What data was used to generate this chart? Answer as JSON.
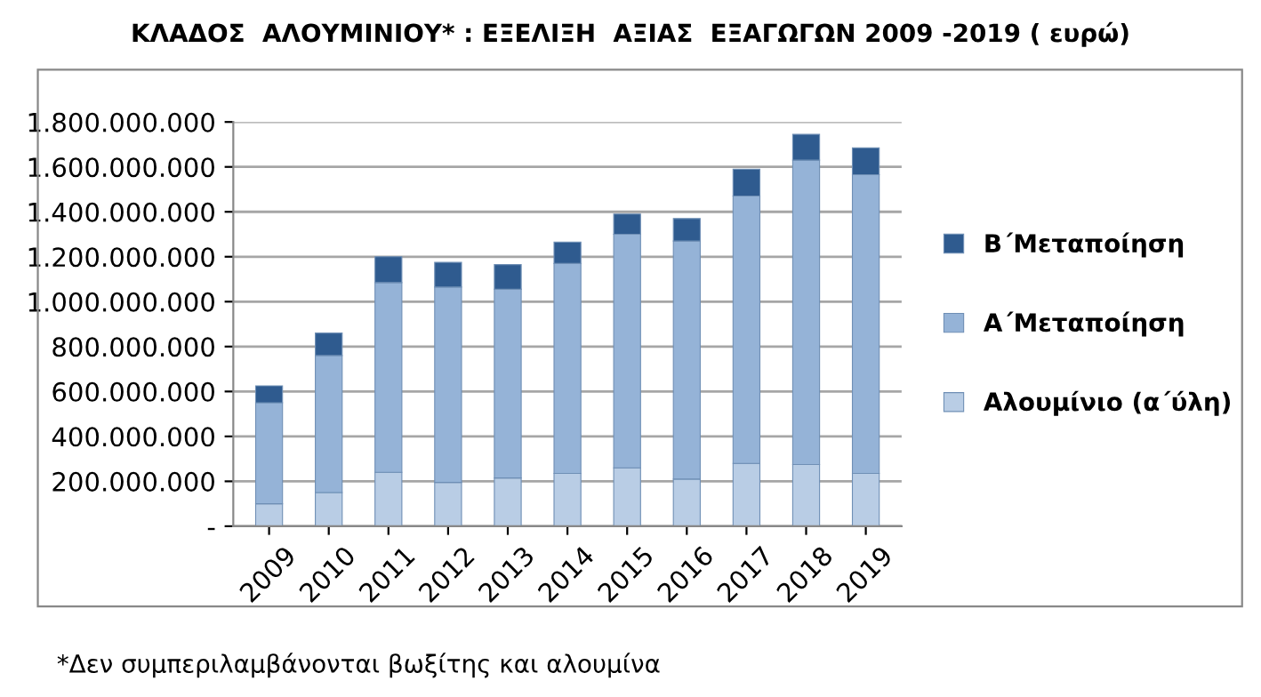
{
  "chart_data": {
    "type": "bar",
    "title": "ΚΛΑΔΟΣ  ΑΛΟΥΜΙΝΙΟΥ* : ΕΞΕΛΙΞΗ  ΑΞΙΑΣ  ΕΞΑΓΩΓΩΝ 2009 -2019 ( ευρώ)",
    "categories": [
      "2009",
      "2010",
      "2011",
      "2012",
      "2013",
      "2014",
      "2015",
      "2016",
      "2017",
      "2018",
      "2019"
    ],
    "stacked": true,
    "series": [
      {
        "name": "Αλουμίνιο (α΄ύλη)",
        "color": "#b9cde5",
        "values": [
          100000000,
          150000000,
          240000000,
          195000000,
          215000000,
          235000000,
          260000000,
          210000000,
          280000000,
          275000000,
          235000000
        ]
      },
      {
        "name": "Α΄Μεταποίηση",
        "color": "#95b3d7",
        "values": [
          450000000,
          610000000,
          845000000,
          870000000,
          840000000,
          935000000,
          1040000000,
          1060000000,
          1190000000,
          1355000000,
          1330000000
        ]
      },
      {
        "name": "Β΄Μεταποίηση",
        "color": "#2f5b8f",
        "values": [
          75000000,
          100000000,
          115000000,
          110000000,
          110000000,
          95000000,
          90000000,
          100000000,
          120000000,
          115000000,
          120000000
        ]
      }
    ],
    "ylim": [
      0,
      1800000000
    ],
    "yticks": [
      {
        "value": 0,
        "label": "-"
      },
      {
        "value": 200000000,
        "label": "200.000.000"
      },
      {
        "value": 400000000,
        "label": "400.000.000"
      },
      {
        "value": 600000000,
        "label": "600.000.000"
      },
      {
        "value": 800000000,
        "label": "800.000.000"
      },
      {
        "value": 1000000000,
        "label": "1.000.000.000"
      },
      {
        "value": 1200000000,
        "label": "1.200.000.000"
      },
      {
        "value": 1400000000,
        "label": "1.400.000.000"
      },
      {
        "value": 1600000000,
        "label": "1.600.000.000"
      },
      {
        "value": 1800000000,
        "label": "1.800.000.000"
      }
    ],
    "grid": "y",
    "legend": "right",
    "annotations": [
      "*Δεν συμπεριλαμβάνονται βωξίτης και αλουμίνα"
    ]
  }
}
